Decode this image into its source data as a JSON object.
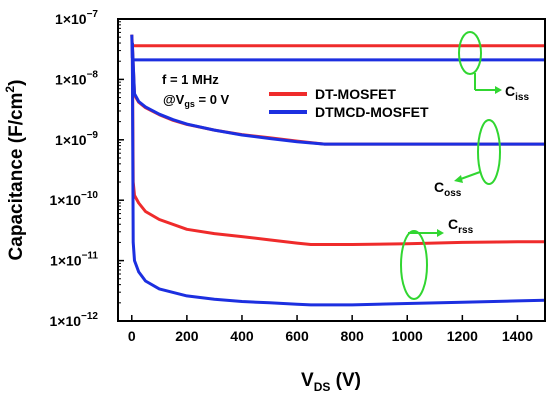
{
  "chart_data": {
    "type": "line",
    "xlabel": "V",
    "xlabel_sub": "DS",
    "xlabel_unit": " (V)",
    "ylabel": "Capacitance (F/cm",
    "ylabel_sup": "2",
    "ylabel_end": ")",
    "xlim": [
      -50,
      1500
    ],
    "ylim": [
      1e-12,
      1e-07
    ],
    "yscale": "log",
    "x_ticks": [
      0,
      200,
      400,
      600,
      800,
      1000,
      1200,
      1400
    ],
    "y_ticks": [
      {
        "value": 1e-12,
        "base": "1×10",
        "exp": "−12"
      },
      {
        "value": 1e-11,
        "base": "1×10",
        "exp": "−11"
      },
      {
        "value": 1e-10,
        "base": "1×10",
        "exp": "−10"
      },
      {
        "value": 1e-09,
        "base": "1×10",
        "exp": "−9"
      },
      {
        "value": 1e-08,
        "base": "1×10",
        "exp": "−8"
      },
      {
        "value": 1e-07,
        "base": "1×10",
        "exp": "−7"
      }
    ],
    "conditions": {
      "frequency": "f = 1 MHz",
      "bias_prefix": "@V",
      "bias_sub": "gs",
      "bias_suffix": " = 0 V"
    },
    "legend": {
      "position": "top-center"
    },
    "series": [
      {
        "name": "DT-MOSFET",
        "color": "#ef2b2b",
        "curves": [
          {
            "label": "Ciss",
            "x": [
              0,
              2,
              5,
              1500
            ],
            "y": [
              5.5e-08,
              3.8e-08,
              3.6e-08,
              3.6e-08
            ]
          },
          {
            "label": "Coss",
            "x": [
              2,
              10,
              25,
              50,
              100,
              150,
              200,
              300,
              400,
              500,
              600,
              700,
              800,
              1000,
              1200,
              1400,
              1500
            ],
            "y": [
              4e-08,
              5.5e-09,
              4.2e-09,
              3.4e-09,
              2.6e-09,
              2.1e-09,
              1.8e-09,
              1.45e-09,
              1.22e-09,
              1.08e-09,
              9.5e-10,
              8.5e-10,
              8.5e-10,
              8.5e-10,
              8.5e-10,
              8.5e-10,
              8.5e-10
            ]
          },
          {
            "label": "Crss",
            "x": [
              2,
              5,
              10,
              25,
              50,
              100,
              200,
              300,
              400,
              500,
              600,
              650,
              800,
              1000,
              1200,
              1400,
              1500
            ],
            "y": [
              4e-08,
              2e-10,
              1.2e-10,
              9e-11,
              6.5e-11,
              4.8e-11,
              3.3e-11,
              2.8e-11,
              2.5e-11,
              2.2e-11,
              1.95e-11,
              1.85e-11,
              1.85e-11,
              1.9e-11,
              2e-11,
              2.05e-11,
              2.05e-11
            ]
          }
        ]
      },
      {
        "name": "DTMCD-MOSFET",
        "color": "#1c2fe0",
        "curves": [
          {
            "label": "Ciss",
            "x": [
              0,
              2,
              5,
              1500
            ],
            "y": [
              5.5e-08,
              2.3e-08,
              2.1e-08,
              2.1e-08
            ]
          },
          {
            "label": "Coss",
            "x": [
              2,
              10,
              25,
              50,
              100,
              150,
              200,
              300,
              400,
              500,
              600,
              700,
              800,
              1000,
              1200,
              1400,
              1500
            ],
            "y": [
              4e-08,
              5.8e-09,
              4.3e-09,
              3.5e-09,
              2.65e-09,
              2.15e-09,
              1.82e-09,
              1.45e-09,
              1.2e-09,
              1.05e-09,
              9.3e-10,
              8.5e-10,
              8.5e-10,
              8.5e-10,
              8.5e-10,
              8.5e-10,
              8.5e-10
            ]
          },
          {
            "label": "Crss",
            "x": [
              2,
              5,
              10,
              25,
              50,
              100,
              200,
              300,
              400,
              500,
              600,
              650,
              800,
              1000,
              1200,
              1400,
              1500
            ],
            "y": [
              4e-08,
              2e-11,
              1e-11,
              6.5e-12,
              4.6e-12,
              3.4e-12,
              2.6e-12,
              2.3e-12,
              2.1e-12,
              2e-12,
              1.9e-12,
              1.85e-12,
              1.85e-12,
              1.95e-12,
              2.05e-12,
              2.15e-12,
              2.2e-12
            ]
          }
        ]
      }
    ],
    "annotations": {
      "ellipse_color": "#31d631",
      "arrow_color": "#31d631",
      "items": [
        {
          "label": "C",
          "sub": "iss"
        },
        {
          "label": "C",
          "sub": "oss"
        },
        {
          "label": "C",
          "sub": "rss"
        }
      ]
    }
  }
}
